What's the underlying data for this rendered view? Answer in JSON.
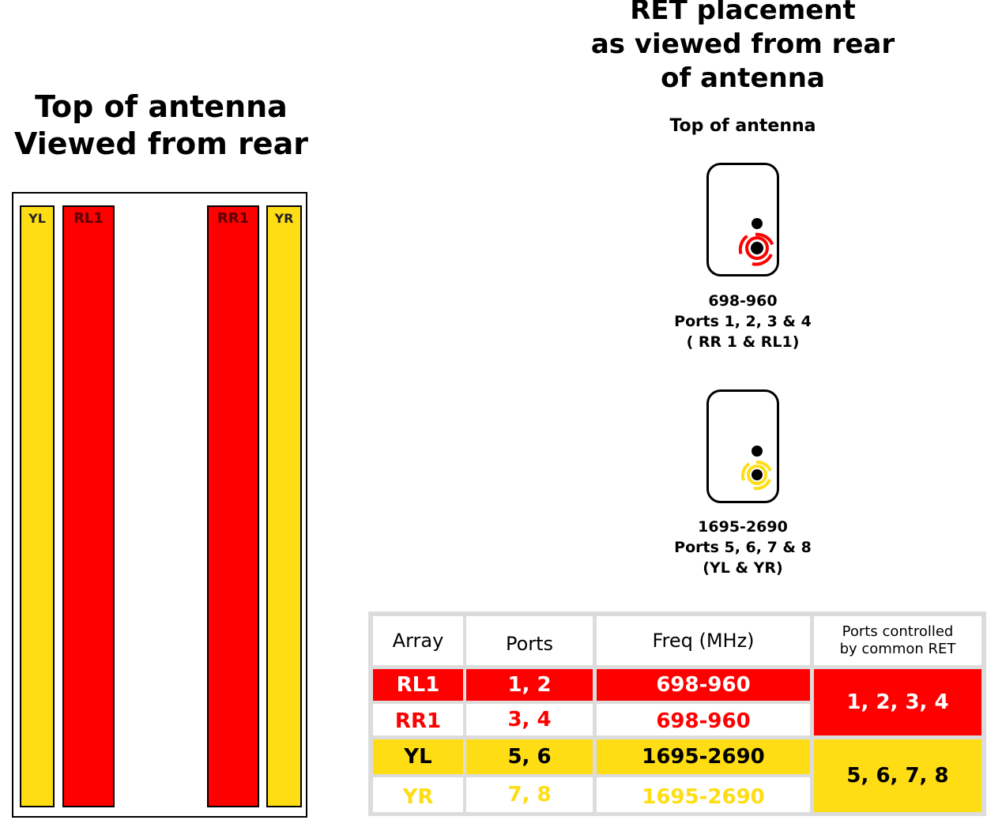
{
  "left_panel": {
    "title_line1": "Top of antenna",
    "title_line2": "Viewed from rear",
    "columns": [
      {
        "label": "YL",
        "color": "#ffdd15"
      },
      {
        "label": "RL1",
        "color": "#ff0000"
      },
      {
        "label": "RR1",
        "color": "#ff0000"
      },
      {
        "label": "YR",
        "color": "#ffdd15"
      }
    ]
  },
  "right_panel": {
    "title_line1": "RET placement",
    "title_line2": "as viewed from rear",
    "title_line3": "of antenna",
    "subtitle": "Top of antenna",
    "rets": [
      {
        "freq": "698-960",
        "ports": "Ports 1, 2, 3 & 4",
        "arrays": "( RR 1 & RL1)",
        "color": "#ff0000"
      },
      {
        "freq": "1695-2690",
        "ports": "Ports 5, 6, 7 & 8",
        "arrays": "(YL & YR)",
        "color": "#ffdd15"
      }
    ]
  },
  "table": {
    "headers": {
      "array": "Array",
      "ports": "Ports",
      "freq": "Freq (MHz)",
      "controlled_line1": "Ports controlled",
      "controlled_line2": "by common RET"
    },
    "rows": [
      {
        "array": "RL1",
        "ports": "1, 2",
        "freq": "698-960"
      },
      {
        "array": "RR1",
        "ports": "3, 4",
        "freq": "698-960"
      },
      {
        "array": "YL",
        "ports": "5, 6",
        "freq": "1695-2690"
      },
      {
        "array": "YR",
        "ports": "7, 8",
        "freq": "1695-2690"
      }
    ],
    "common_ret": [
      "1, 2, 3, 4",
      "5, 6, 7, 8"
    ],
    "colors": {
      "red": "#ff0000",
      "yellow": "#ffdd15",
      "grid": "#dcdcdc"
    }
  }
}
